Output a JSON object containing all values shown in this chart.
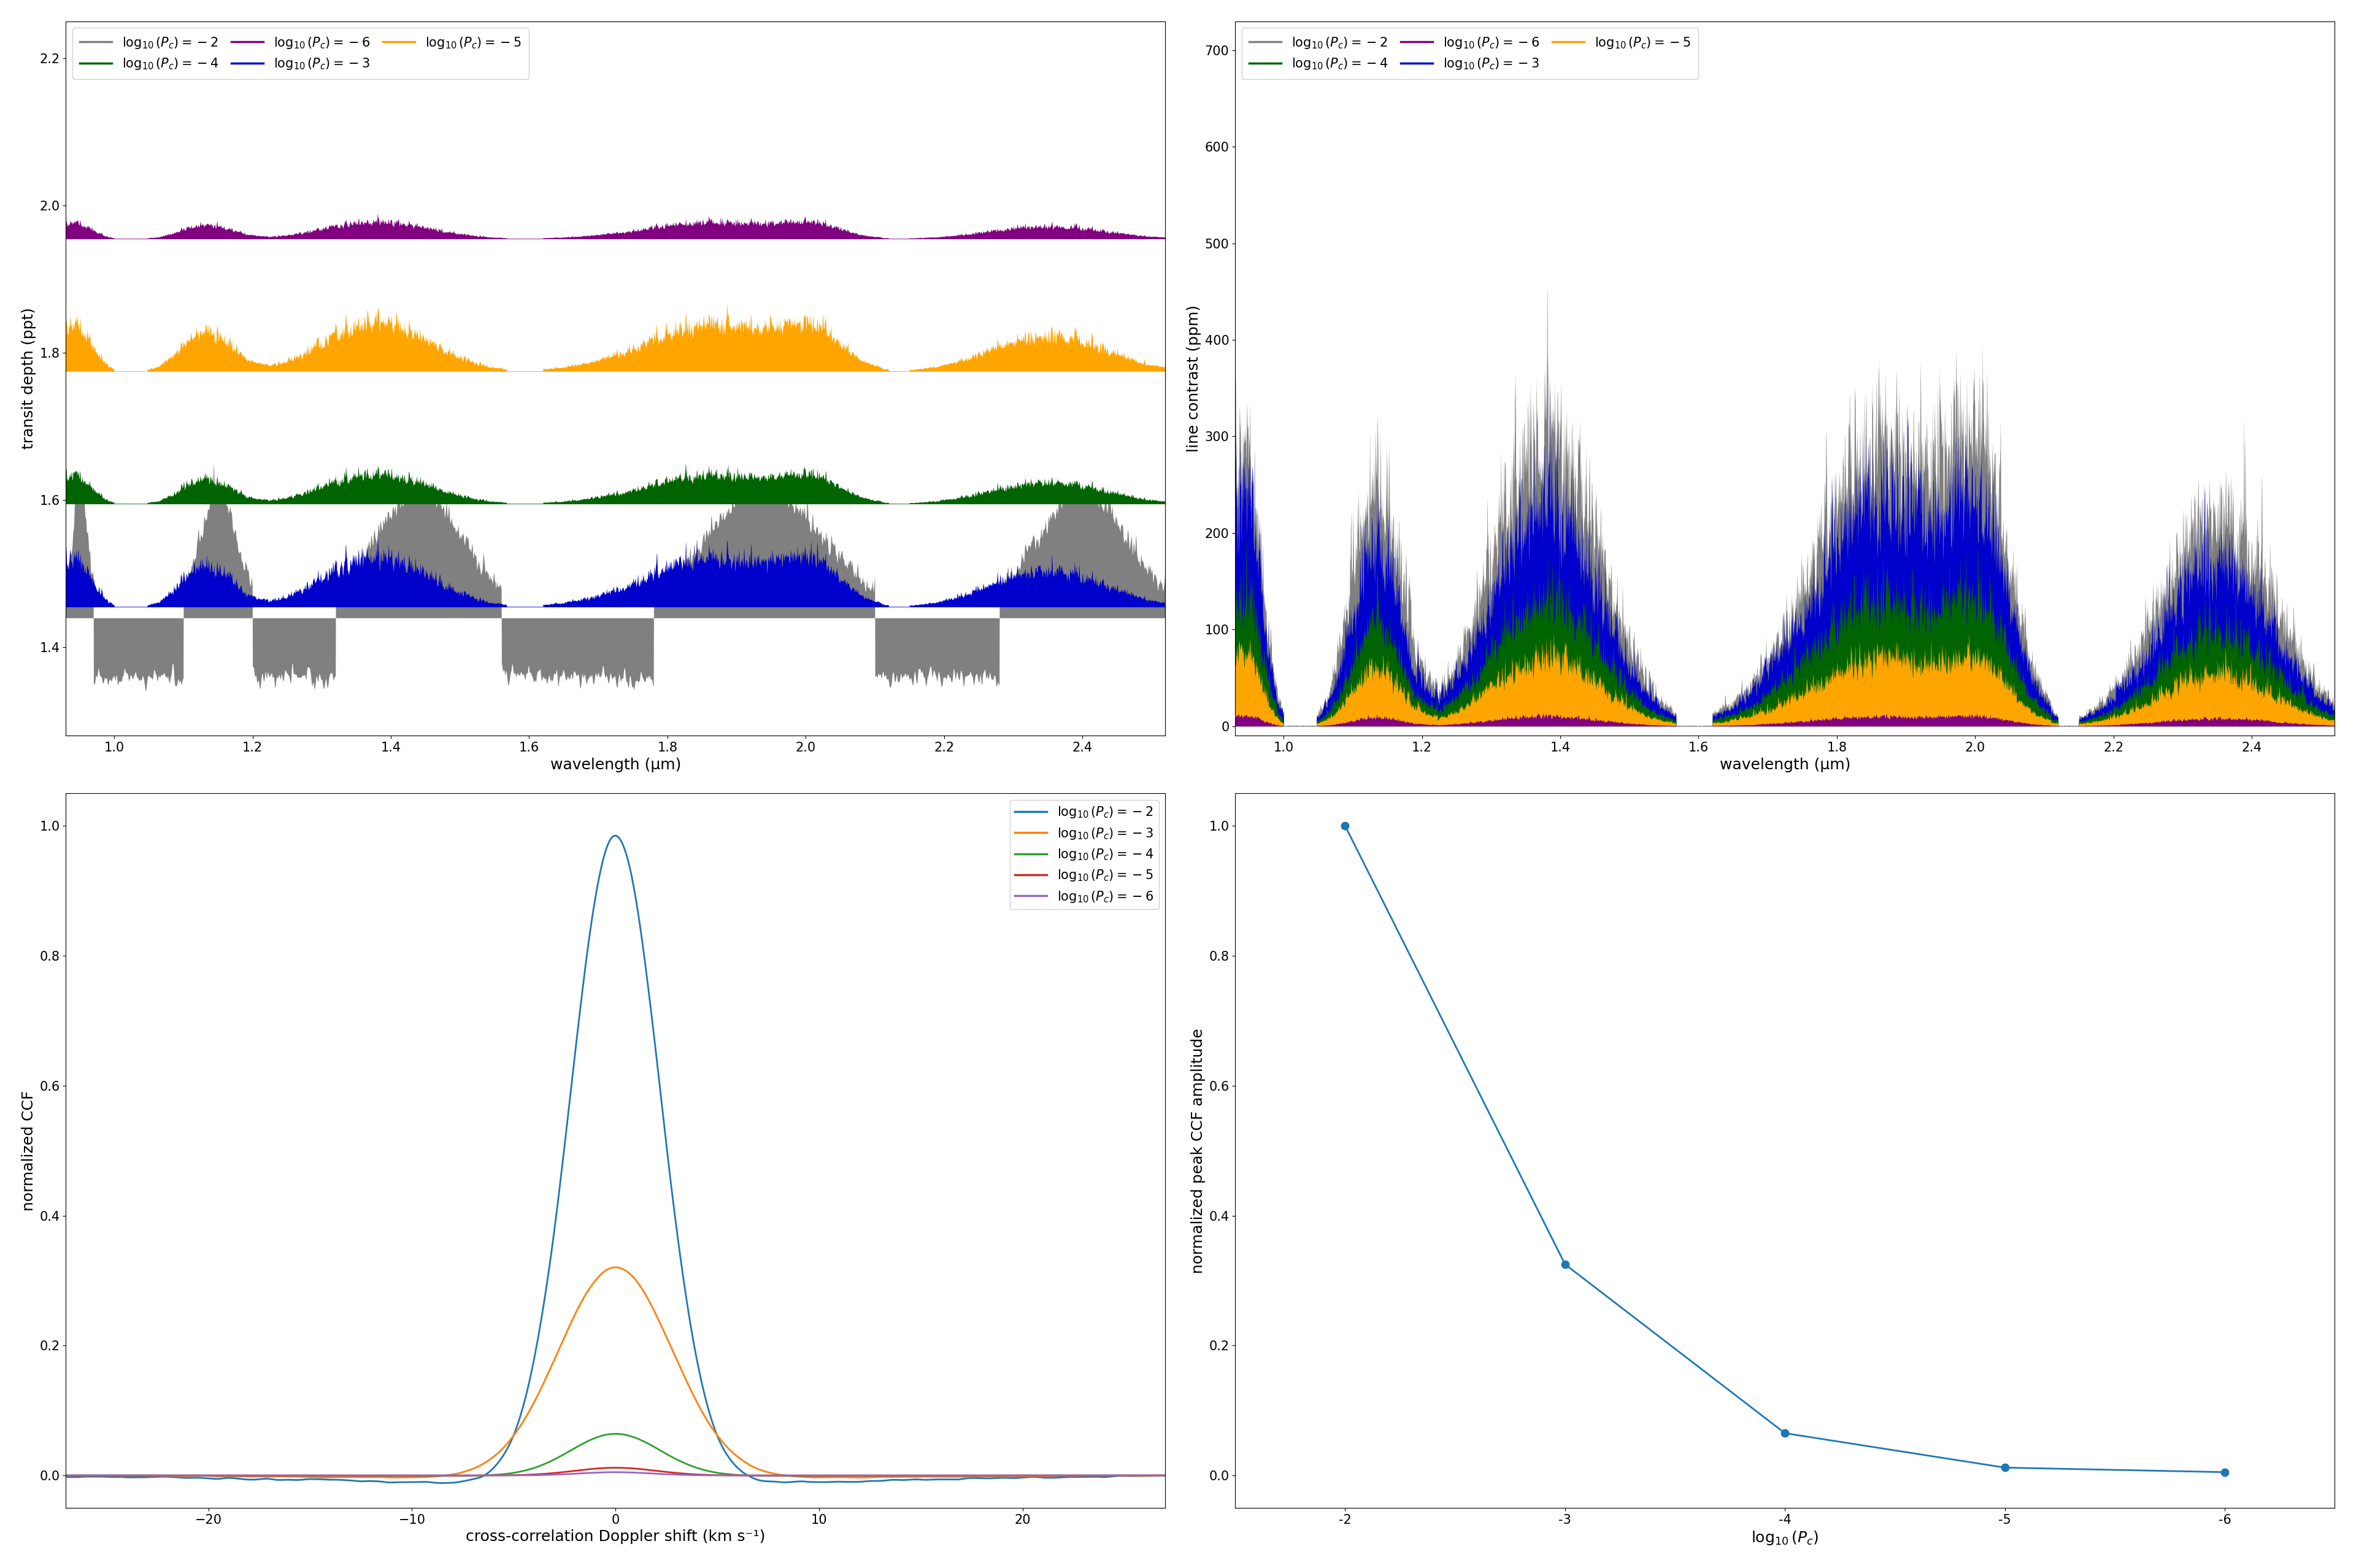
{
  "colors": {
    "pc_neg2": "#808080",
    "pc_neg3": "#0000CD",
    "pc_neg4": "#006400",
    "pc_neg5": "#FFA500",
    "pc_neg6": "#800080"
  },
  "ccf_colors": {
    "pc_neg2": "#1f77b4",
    "pc_neg3": "#ff7f0e",
    "pc_neg4": "#2ca02c",
    "pc_neg5": "#d62728",
    "pc_neg6": "#9467bd"
  },
  "top_left": {
    "xlim": [
      0.93,
      2.52
    ],
    "ylim": [
      1.28,
      2.25
    ],
    "xlabel": "wavelength (μm)",
    "ylabel": "transit depth (ppt)",
    "baselines": {
      "pc_neg2": 1.44,
      "pc_neg3": 1.455,
      "pc_neg4": 1.595,
      "pc_neg5": 1.775,
      "pc_neg6": 1.955
    }
  },
  "top_right": {
    "xlim": [
      0.93,
      2.52
    ],
    "ylim": [
      -10,
      730
    ],
    "xlabel": "wavelength (μm)",
    "ylabel": "line contrast (ppm)"
  },
  "bottom_left": {
    "xlim": [
      -27,
      27
    ],
    "ylim": [
      -0.05,
      1.05
    ],
    "xlabel": "cross-correlation Doppler shift (km s⁻¹)",
    "ylabel": "normalized CCF",
    "peak_values": {
      "pc_neg2": 1.0,
      "pc_neg3": 0.325,
      "pc_neg4": 0.065,
      "pc_neg5": 0.012,
      "pc_neg6": 0.005
    },
    "widths": {
      "pc_neg2": 2.2,
      "pc_neg3": 2.8,
      "pc_neg4": 2.2,
      "pc_neg5": 2.0,
      "pc_neg6": 1.8
    }
  },
  "bottom_right": {
    "x_ticks": [
      -2,
      -3,
      -4,
      -5,
      -6
    ],
    "xlabel": "$\\log_{10}(P_c)$",
    "ylabel": "normalized peak CCF amplitude",
    "ylim": [
      -0.05,
      1.05
    ],
    "values": [
      1.0,
      0.325,
      0.065,
      0.012,
      0.005
    ],
    "color": "#1f77b4"
  },
  "legend_labels": {
    "pc_neg2": "$\\log_{10}(P_c) = -2$",
    "pc_neg3": "$\\log_{10}(P_c) = -3$",
    "pc_neg4": "$\\log_{10}(P_c) = -4$",
    "pc_neg5": "$\\log_{10}(P_c) = -5$",
    "pc_neg6": "$\\log_{10}(P_c) = -6$"
  }
}
